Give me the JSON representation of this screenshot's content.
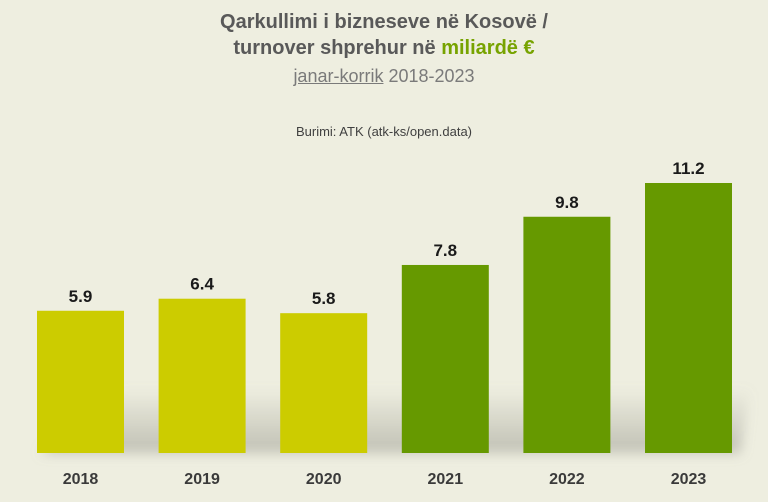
{
  "chart_data": {
    "type": "bar",
    "title_line1": "Qarkullimi  i bizneseve në Kosovë /",
    "title_line2_prefix": "turnover shprehur në ",
    "title_line2_accent": "miliardë €",
    "subtitle_underlined": "janar-korrik",
    "subtitle_rest": " 2018-2023",
    "source": "Burimi: ATK (atk-ks/open.data)",
    "categories": [
      "2018",
      "2019",
      "2020",
      "2021",
      "2022",
      "2023"
    ],
    "values": [
      5.9,
      6.4,
      5.8,
      7.8,
      9.8,
      11.2
    ],
    "value_labels": [
      "5.9",
      "6.4",
      "5.8",
      "7.8",
      "9.8",
      "11.2"
    ],
    "colors": [
      "#cccc00",
      "#cccc00",
      "#cccc00",
      "#669900",
      "#669900",
      "#669900"
    ],
    "accent_color": "#77a300",
    "ylim": [
      0,
      11.2
    ],
    "grid": false,
    "legend": "none"
  }
}
